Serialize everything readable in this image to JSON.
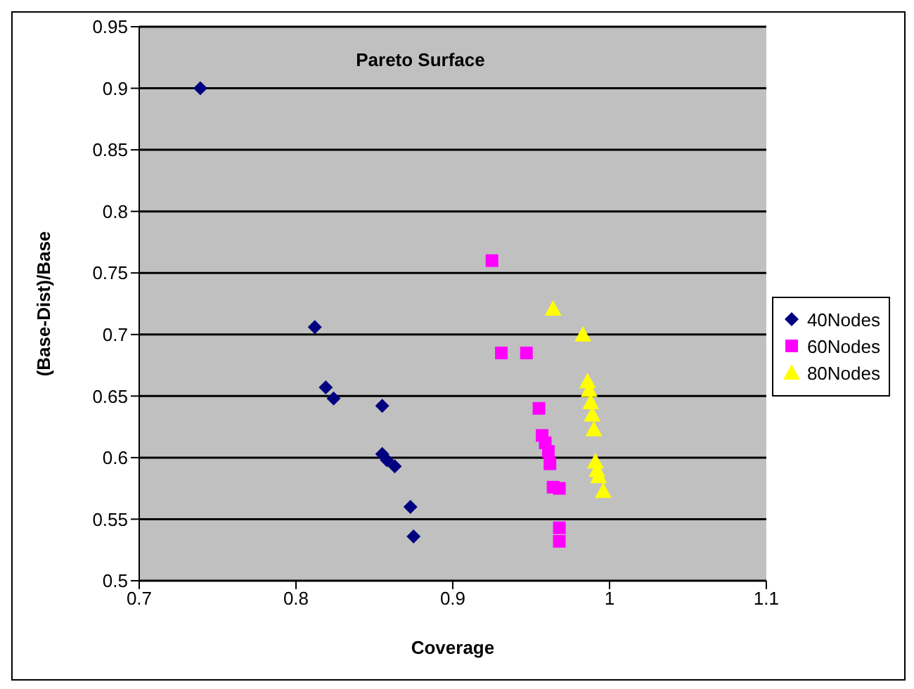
{
  "chart_data": {
    "type": "scatter",
    "title": "Pareto Surface",
    "xlabel": "Coverage",
    "ylabel": "(Base-Dist)/Base",
    "xlim": [
      0.7,
      1.1
    ],
    "xticks": [
      0.7,
      0.8,
      0.9,
      1,
      1.1
    ],
    "ylim": [
      0.5,
      0.95
    ],
    "yticks": [
      0.5,
      0.55,
      0.6,
      0.65,
      0.7,
      0.75,
      0.8,
      0.85,
      0.9,
      0.95
    ],
    "grid": "y",
    "legend": "right",
    "series": [
      {
        "name": "40Nodes",
        "color": "#000080",
        "marker": "diamond",
        "x": [
          0.739,
          0.812,
          0.819,
          0.824,
          0.855,
          0.855,
          0.858,
          0.863,
          0.873,
          0.875
        ],
        "values": [
          0.9,
          0.706,
          0.657,
          0.648,
          0.642,
          0.603,
          0.598,
          0.593,
          0.56,
          0.536
        ]
      },
      {
        "name": "60Nodes",
        "color": "#ff00ff",
        "marker": "square",
        "x": [
          0.925,
          0.931,
          0.947,
          0.955,
          0.957,
          0.959,
          0.961,
          0.962,
          0.964,
          0.968,
          0.968,
          0.968
        ],
        "values": [
          0.76,
          0.685,
          0.685,
          0.64,
          0.618,
          0.612,
          0.605,
          0.595,
          0.576,
          0.575,
          0.543,
          0.532
        ]
      },
      {
        "name": "80Nodes",
        "color": "#ffff00",
        "marker": "triangle",
        "x": [
          0.964,
          0.983,
          0.986,
          0.987,
          0.988,
          0.989,
          0.99,
          0.991,
          0.992,
          0.993,
          0.996
        ],
        "values": [
          0.721,
          0.7,
          0.662,
          0.655,
          0.645,
          0.635,
          0.623,
          0.597,
          0.59,
          0.585,
          0.573
        ]
      }
    ]
  }
}
